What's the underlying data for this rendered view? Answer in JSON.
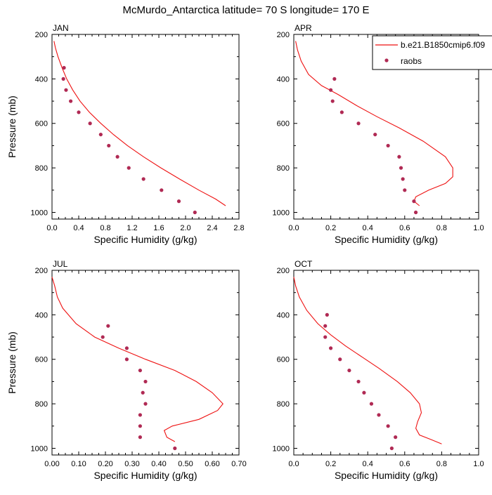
{
  "title": "McMurdo_Antarctica  latitude= 70 S longitude= 170 E",
  "colors": {
    "model": "#ee1111",
    "obs": "#b02a54"
  },
  "legend": {
    "model_label": "b.e21.B1850cmip6.f09",
    "obs_label": "raobs",
    "placement": "top-right of APR panel"
  },
  "chart_data": [
    {
      "type": "line",
      "panel": "JAN",
      "xlabel": "Specific Humidity (g/kg)",
      "ylabel": "Pressure (mb)",
      "xlim": [
        0.0,
        2.8
      ],
      "xticks": [
        "0.0",
        "0.4",
        "0.8",
        "1.2",
        "1.6",
        "2.0",
        "2.4",
        "2.8"
      ],
      "ylim": [
        200,
        1030
      ],
      "yticks": [
        "200",
        "400",
        "600",
        "800",
        "1000"
      ],
      "series": [
        {
          "name": "b.e21.B1850cmip6.f09",
          "style": "line",
          "x": [
            0.03,
            0.05,
            0.09,
            0.15,
            0.22,
            0.31,
            0.42,
            0.56,
            0.73,
            0.92,
            1.13,
            1.37,
            1.63,
            1.91,
            2.2,
            2.45,
            2.6
          ],
          "y": [
            230,
            260,
            300,
            350,
            400,
            450,
            500,
            550,
            600,
            650,
            700,
            750,
            800,
            850,
            900,
            940,
            970
          ]
        },
        {
          "name": "raobs",
          "style": "markers",
          "x": [
            0.18,
            0.17,
            0.21,
            0.28,
            0.4,
            0.57,
            0.73,
            0.85,
            0.98,
            1.15,
            1.37,
            1.64,
            1.9,
            2.14
          ],
          "y": [
            350,
            400,
            450,
            500,
            550,
            600,
            650,
            700,
            750,
            800,
            850,
            900,
            950,
            1000
          ]
        }
      ]
    },
    {
      "type": "line",
      "panel": "APR",
      "xlabel": "Specific Humidity (g/kg)",
      "ylabel": "",
      "xlim": [
        0.0,
        1.0
      ],
      "xticks": [
        "0.0",
        "0.2",
        "0.4",
        "0.6",
        "0.8",
        "1.0"
      ],
      "ylim": [
        200,
        1030
      ],
      "yticks": [
        "200",
        "400",
        "600",
        "800",
        "1000"
      ],
      "series": [
        {
          "name": "b.e21.B1850cmip6.f09",
          "style": "line",
          "x": [
            0.01,
            0.02,
            0.04,
            0.08,
            0.15,
            0.24,
            0.34,
            0.45,
            0.57,
            0.7,
            0.82,
            0.86,
            0.86,
            0.82,
            0.73,
            0.66,
            0.65,
            0.68
          ],
          "y": [
            230,
            270,
            320,
            380,
            430,
            470,
            520,
            570,
            620,
            680,
            750,
            800,
            840,
            870,
            900,
            930,
            950,
            970
          ]
        },
        {
          "name": "raobs",
          "style": "markers",
          "x": [
            0.22,
            0.2,
            0.21,
            0.26,
            0.35,
            0.44,
            0.51,
            0.57,
            0.58,
            0.59,
            0.6,
            0.65,
            0.66
          ],
          "y": [
            400,
            450,
            500,
            550,
            600,
            650,
            700,
            750,
            800,
            850,
            900,
            950,
            1000
          ]
        }
      ]
    },
    {
      "type": "line",
      "panel": "JUL",
      "xlabel": "Specific Humidity (g/kg)",
      "ylabel": "Pressure (mb)",
      "xlim": [
        0.0,
        0.7
      ],
      "xticks": [
        "0.00",
        "0.10",
        "0.20",
        "0.30",
        "0.40",
        "0.50",
        "0.60",
        "0.70"
      ],
      "ylim": [
        200,
        1030
      ],
      "yticks": [
        "200",
        "400",
        "600",
        "800",
        "1000"
      ],
      "series": [
        {
          "name": "b.e21.B1850cmip6.f09",
          "style": "line",
          "x": [
            0.0,
            0.01,
            0.02,
            0.04,
            0.09,
            0.16,
            0.25,
            0.35,
            0.46,
            0.54,
            0.6,
            0.64,
            0.62,
            0.55,
            0.45,
            0.42,
            0.43,
            0.46
          ],
          "y": [
            230,
            270,
            320,
            370,
            440,
            500,
            550,
            600,
            650,
            700,
            750,
            800,
            830,
            870,
            900,
            920,
            950,
            970
          ]
        },
        {
          "name": "raobs",
          "style": "markers",
          "x": [
            0.21,
            0.19,
            0.28,
            0.28,
            0.33,
            0.35,
            0.34,
            0.35,
            0.33,
            0.33,
            0.33,
            0.46
          ],
          "y": [
            450,
            500,
            550,
            600,
            650,
            700,
            750,
            800,
            850,
            900,
            950,
            1000
          ]
        }
      ]
    },
    {
      "type": "line",
      "panel": "OCT",
      "xlabel": "Specific Humidity (g/kg)",
      "ylabel": "",
      "xlim": [
        0.0,
        1.0
      ],
      "xticks": [
        "0.0",
        "0.2",
        "0.4",
        "0.6",
        "0.8",
        "1.0"
      ],
      "ylim": [
        200,
        1030
      ],
      "yticks": [
        "200",
        "400",
        "600",
        "800",
        "1000"
      ],
      "series": [
        {
          "name": "b.e21.B1850cmip6.f09",
          "style": "line",
          "x": [
            0.0,
            0.01,
            0.03,
            0.07,
            0.13,
            0.2,
            0.28,
            0.37,
            0.46,
            0.56,
            0.63,
            0.68,
            0.69,
            0.67,
            0.66,
            0.68,
            0.74,
            0.8
          ],
          "y": [
            230,
            270,
            320,
            380,
            440,
            490,
            540,
            590,
            640,
            700,
            750,
            800,
            840,
            880,
            910,
            940,
            960,
            980
          ]
        },
        {
          "name": "raobs",
          "style": "markers",
          "x": [
            0.18,
            0.17,
            0.17,
            0.2,
            0.25,
            0.3,
            0.35,
            0.38,
            0.42,
            0.46,
            0.51,
            0.55,
            0.53
          ],
          "y": [
            400,
            450,
            500,
            550,
            600,
            650,
            700,
            750,
            800,
            850,
            900,
            950,
            1000
          ]
        }
      ]
    }
  ]
}
